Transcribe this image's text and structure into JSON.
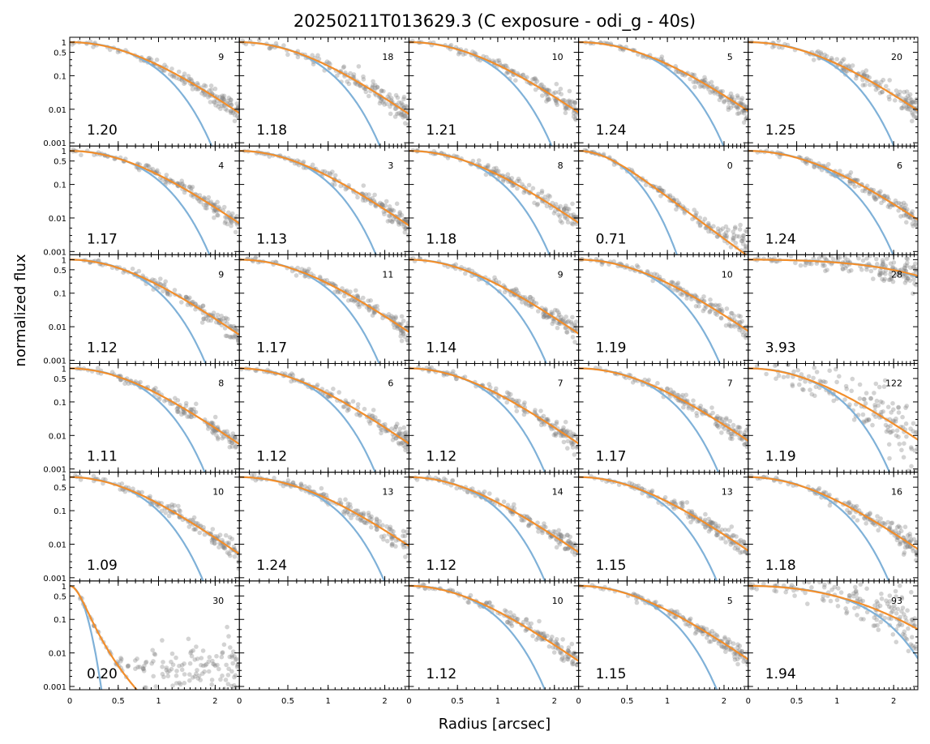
{
  "chart_data": {
    "type": "scatter",
    "title": "20250211T013629.3 (C exposure - odi_g - 40s)",
    "xlabel": "Radius [arcsec]",
    "ylabel": "normalized flux",
    "layout": {
      "rows": 6,
      "cols": 5,
      "shared_axes": true
    },
    "x_axis": {
      "scale": "asinh",
      "range": [
        0,
        2.6
      ],
      "tick_values": [
        0,
        0.5,
        1,
        2
      ],
      "tick_labels": [
        "0",
        "0.5",
        "1",
        "2"
      ]
    },
    "y_axis": {
      "scale": "log",
      "range": [
        0.0008,
        1.4
      ],
      "tick_values": [
        1,
        0.5,
        0.1,
        0.01,
        0.001
      ],
      "tick_labels": [
        "1",
        "0.5",
        "0.1",
        "0.01",
        "0.001"
      ]
    },
    "colors": {
      "points": "#808080",
      "fit_orange": "#f28e2b",
      "fit_blue": "#7fb1d8"
    },
    "series_styles": [
      {
        "kind": "points",
        "marker": "circle",
        "alpha": 0.35
      },
      {
        "kind": "line",
        "curve": "gaussian"
      },
      {
        "kind": "line",
        "curve": "moffat"
      }
    ],
    "panels": [
      {
        "fwhm": "1.20",
        "count": "9"
      },
      {
        "fwhm": "1.18",
        "count": "18"
      },
      {
        "fwhm": "1.21",
        "count": "10"
      },
      {
        "fwhm": "1.24",
        "count": "5"
      },
      {
        "fwhm": "1.25",
        "count": "20"
      },
      {
        "fwhm": "1.17",
        "count": "4"
      },
      {
        "fwhm": "1.13",
        "count": "3"
      },
      {
        "fwhm": "1.18",
        "count": "8"
      },
      {
        "fwhm": "0.71",
        "count": "0"
      },
      {
        "fwhm": "1.24",
        "count": "6"
      },
      {
        "fwhm": "1.12",
        "count": "9"
      },
      {
        "fwhm": "1.17",
        "count": "11"
      },
      {
        "fwhm": "1.14",
        "count": "9"
      },
      {
        "fwhm": "1.19",
        "count": "10"
      },
      {
        "fwhm": "3.93",
        "count": "28"
      },
      {
        "fwhm": "1.11",
        "count": "8"
      },
      {
        "fwhm": "1.12",
        "count": "6"
      },
      {
        "fwhm": "1.12",
        "count": "7"
      },
      {
        "fwhm": "1.17",
        "count": "7"
      },
      {
        "fwhm": "1.19",
        "count": "122"
      },
      {
        "fwhm": "1.09",
        "count": "10"
      },
      {
        "fwhm": "1.24",
        "count": "13"
      },
      {
        "fwhm": "1.12",
        "count": "14"
      },
      {
        "fwhm": "1.15",
        "count": "13"
      },
      {
        "fwhm": "1.18",
        "count": "16"
      },
      {
        "fwhm": "0.20",
        "count": "30"
      },
      {
        "fwhm": "",
        "count": "",
        "empty": true
      },
      {
        "fwhm": "1.12",
        "count": "10"
      },
      {
        "fwhm": "1.15",
        "count": "5"
      },
      {
        "fwhm": "1.94",
        "count": "93"
      }
    ]
  }
}
